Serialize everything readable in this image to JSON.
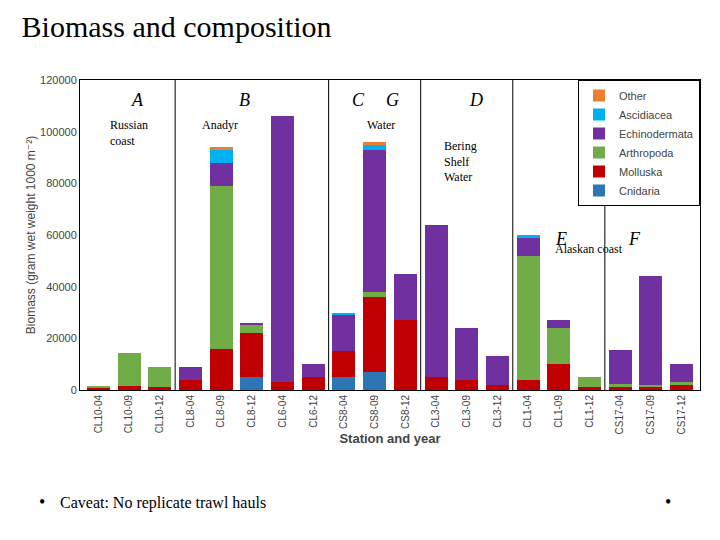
{
  "chart_data": {
    "type": "bar",
    "stacked": true,
    "title": "Biomass and composition",
    "xlabel": "Station and year",
    "ylabel": "Biomass (gram wet weight 1000 m⁻²)",
    "categories": [
      "CL10-04",
      "CL10-09",
      "CL10-12",
      "CL8-04",
      "CL8-09",
      "CL8-12",
      "CL6-04",
      "CL6-12",
      "CS8-04",
      "CS8-09",
      "CS8-12",
      "CL3-04",
      "CL3-09",
      "CL3-12",
      "CL1-04",
      "CL1-09",
      "CL1-12",
      "CS17-04",
      "CS17-09",
      "CS17-12"
    ],
    "series": [
      {
        "name": "Cnidaria",
        "color": "#2e75b6",
        "values": [
          0,
          0,
          0,
          0,
          0,
          5000,
          0,
          0,
          5000,
          7000,
          0,
          0,
          0,
          0,
          0,
          0,
          0,
          0,
          0,
          0
        ]
      },
      {
        "name": "Molluska",
        "color": "#c00000",
        "values": [
          1000,
          1500,
          1000,
          4000,
          16000,
          17000,
          3000,
          5000,
          10000,
          29000,
          27000,
          5000,
          4000,
          2000,
          4000,
          10000,
          1000,
          1000,
          1000,
          2000
        ]
      },
      {
        "name": "Arthropoda",
        "color": "#70ad47",
        "values": [
          500,
          13000,
          8000,
          0,
          63000,
          3000,
          0,
          0,
          0,
          2000,
          0,
          0,
          0,
          0,
          48000,
          14000,
          4000,
          1500,
          1000,
          1000
        ]
      },
      {
        "name": "Echinodermata",
        "color": "#7030a0",
        "values": [
          0,
          0,
          0,
          5000,
          9000,
          1000,
          103000,
          5000,
          14000,
          55000,
          18000,
          59000,
          20000,
          11000,
          7000,
          3000,
          0,
          13000,
          42000,
          7000
        ]
      },
      {
        "name": "Ascidiacea",
        "color": "#00b0f0",
        "values": [
          0,
          0,
          0,
          0,
          5000,
          0,
          0,
          0,
          1000,
          2000,
          0,
          0,
          0,
          0,
          1000,
          0,
          0,
          0,
          0,
          0
        ]
      },
      {
        "name": "Other",
        "color": "#ed7d31",
        "values": [
          0,
          0,
          0,
          0,
          1000,
          0,
          0,
          0,
          0,
          1000,
          0,
          0,
          0,
          0,
          0,
          0,
          0,
          0,
          0,
          0
        ]
      }
    ],
    "ylim": [
      0,
      120000
    ],
    "yticks": [
      0,
      20000,
      40000,
      60000,
      80000,
      100000,
      120000
    ],
    "grid": false,
    "legend": "upper right",
    "annotations": [
      "A",
      "B",
      "C",
      "G",
      "D",
      "E",
      "F",
      "Russian\ncoast",
      "Anadyr",
      "Water",
      "Bering\nShelf\nWater",
      "Alaskan coast",
      "Caveat: No replicate trawl hauls",
      "•",
      "•"
    ]
  }
}
